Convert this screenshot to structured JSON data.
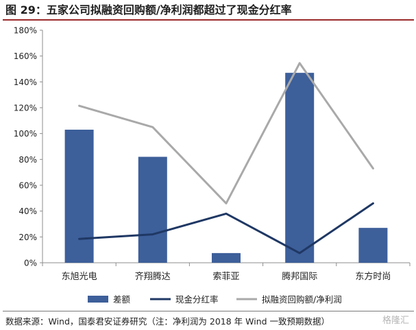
{
  "figure": {
    "title": "图 29：五家公司拟融资回购额/净利润都超过了现金分红率",
    "source": "数据来源：Wind，国泰君安证券研究（注：净利润为 2018 年 Wind 一致预期数据）",
    "watermark": "格隆汇"
  },
  "chart_data": {
    "type": "bar",
    "categories": [
      "东旭光电",
      "齐翔腾达",
      "索菲亚",
      "腾邦国际",
      "东方时尚"
    ],
    "yticks": [
      "0%",
      "20%",
      "40%",
      "60%",
      "80%",
      "100%",
      "120%",
      "140%",
      "160%",
      "180%"
    ],
    "ylim": [
      0,
      180
    ],
    "grid": false,
    "legend_position": "bottom",
    "series": [
      {
        "name": "差额",
        "type": "bar",
        "color": "#3d5f9a",
        "values": [
          103,
          82,
          7.5,
          147,
          27
        ]
      },
      {
        "name": "现金分红率",
        "type": "line",
        "color": "#1f3864",
        "values": [
          18.5,
          22,
          38,
          7.5,
          46
        ]
      },
      {
        "name": "拟融资回购额/净利润",
        "type": "line",
        "color": "#a9a9a9",
        "values": [
          121.5,
          105,
          46,
          154.5,
          73
        ]
      }
    ]
  }
}
